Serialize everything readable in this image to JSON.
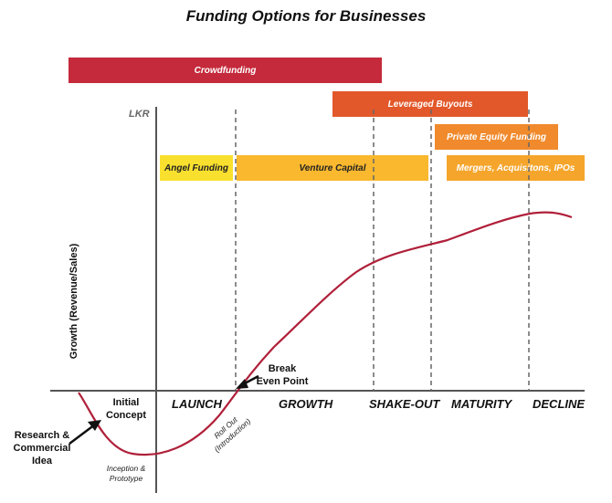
{
  "title": "Funding Options for Businesses",
  "y_axis_label": "Growth (Revenue/Sales)",
  "y_axis_unit": "LKR",
  "funding_bars": {
    "crowdfunding": {
      "label": "Crowdfunding",
      "color": "#c42a3b"
    },
    "leveraged_buyouts": {
      "label": "Leveraged Buyouts",
      "color": "#e2582a"
    },
    "private_equity": {
      "label": "Private Equity Funding",
      "color": "#f08a2c"
    },
    "angel_funding": {
      "label": "Angel Funding",
      "color": "#f9e02e"
    },
    "venture_capital": {
      "label": "Venture Capital",
      "color": "#f9b82e"
    },
    "mergers": {
      "label": "Mergers, Acquisitons, IPOs",
      "color": "#f5a52b"
    }
  },
  "stages": {
    "launch": "LAUNCH",
    "growth": "GROWTH",
    "shake_out": "SHAKE-OUT",
    "maturity": "MATURITY",
    "decline": "DECLINE"
  },
  "annotations": {
    "initial_concept": "Initial Concept",
    "research_idea": "Research & Commercial Idea",
    "inception": "Inception & Prototype",
    "roll_out": "Roll Out (Introduction)",
    "break_even": "Break Even Point"
  },
  "curve_color": "#b0203a"
}
